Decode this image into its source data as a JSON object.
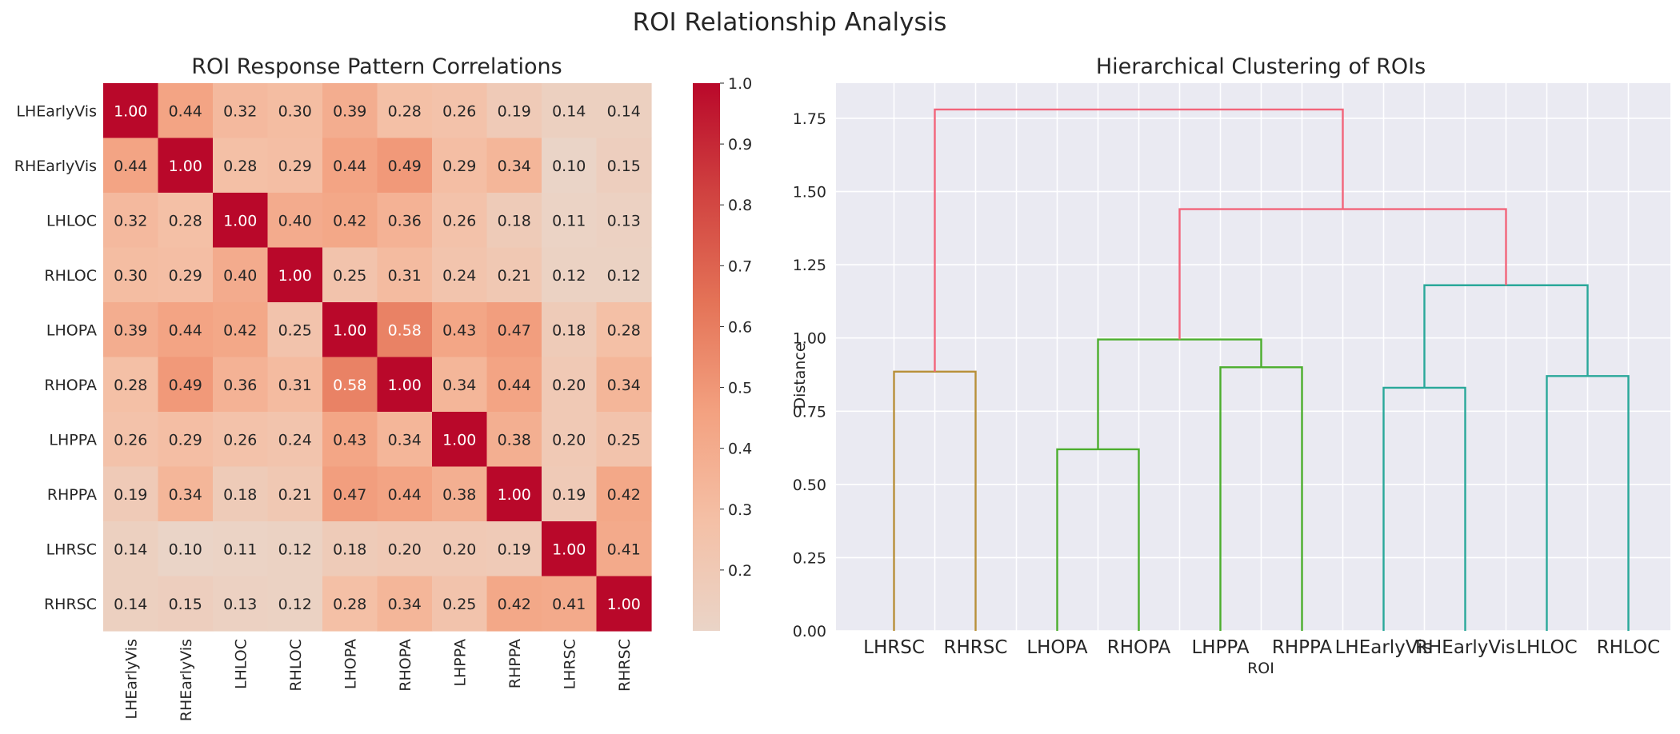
{
  "figure": {
    "title": "ROI Relationship Analysis"
  },
  "chart_data": [
    {
      "type": "heatmap",
      "title": "ROI Response Pattern Correlations",
      "rows": [
        "LHEarlyVis",
        "RHEarlyVis",
        "LHLOC",
        "RHLOC",
        "LHOPA",
        "RHOPA",
        "LHPPA",
        "RHPPA",
        "LHRSC",
        "RHRSC"
      ],
      "cols": [
        "LHEarlyVis",
        "RHEarlyVis",
        "LHLOC",
        "RHLOC",
        "LHOPA",
        "RHOPA",
        "LHPPA",
        "RHPPA",
        "LHRSC",
        "RHRSC"
      ],
      "values": [
        [
          1.0,
          0.44,
          0.32,
          0.3,
          0.39,
          0.28,
          0.26,
          0.19,
          0.14,
          0.14
        ],
        [
          0.44,
          1.0,
          0.28,
          0.29,
          0.44,
          0.49,
          0.29,
          0.34,
          0.1,
          0.15
        ],
        [
          0.32,
          0.28,
          1.0,
          0.4,
          0.42,
          0.36,
          0.26,
          0.18,
          0.11,
          0.13
        ],
        [
          0.3,
          0.29,
          0.4,
          1.0,
          0.25,
          0.31,
          0.24,
          0.21,
          0.12,
          0.12
        ],
        [
          0.39,
          0.44,
          0.42,
          0.25,
          1.0,
          0.58,
          0.43,
          0.47,
          0.18,
          0.28
        ],
        [
          0.28,
          0.49,
          0.36,
          0.31,
          0.58,
          1.0,
          0.34,
          0.44,
          0.2,
          0.34
        ],
        [
          0.26,
          0.29,
          0.26,
          0.24,
          0.43,
          0.34,
          1.0,
          0.38,
          0.2,
          0.25
        ],
        [
          0.19,
          0.34,
          0.18,
          0.21,
          0.47,
          0.44,
          0.38,
          1.0,
          0.19,
          0.42
        ],
        [
          0.14,
          0.1,
          0.11,
          0.12,
          0.18,
          0.2,
          0.2,
          0.19,
          1.0,
          0.41
        ],
        [
          0.14,
          0.15,
          0.13,
          0.12,
          0.28,
          0.34,
          0.25,
          0.42,
          0.41,
          1.0
        ]
      ],
      "colorbar": {
        "range": [
          0.1,
          1.0
        ],
        "ticks": [
          "0.2",
          "0.3",
          "0.4",
          "0.5",
          "0.6",
          "0.7",
          "0.8",
          "0.9",
          "1.0"
        ],
        "colormap": "coolwarm (upper half)"
      },
      "annotations": true
    },
    {
      "type": "dendrogram",
      "title": "Hierarchical Clustering of ROIs",
      "xlabel": "ROI",
      "ylabel": "Distance",
      "leaves": [
        "LHRSC",
        "RHRSC",
        "LHOPA",
        "RHOPA",
        "LHPPA",
        "RHPPA",
        "LHEarlyVis",
        "RHEarlyVis",
        "LHLOC",
        "RHLOC"
      ],
      "ylim": [
        0,
        1.87
      ],
      "yticks": [
        "0.00",
        "0.25",
        "0.50",
        "0.75",
        "1.00",
        "1.25",
        "1.50",
        "1.75"
      ],
      "grid": true,
      "merges": [
        {
          "left": "LHRSC",
          "right": "RHRSC",
          "height": 0.885,
          "color": "#b8903a"
        },
        {
          "left": "LHOPA",
          "right": "RHOPA",
          "height": 0.62,
          "color": "#4cae2e"
        },
        {
          "left": "LHPPA",
          "right": "RHPPA",
          "height": 0.9,
          "color": "#4cae2e"
        },
        {
          "left": "LHOPA+RHOPA",
          "right": "LHPPA+RHPPA",
          "height": 0.995,
          "color": "#4cae2e"
        },
        {
          "left": "LHEarlyVis",
          "right": "RHEarlyVis",
          "height": 0.83,
          "color": "#2aa89a"
        },
        {
          "left": "LHLOC",
          "right": "RHLOC",
          "height": 0.87,
          "color": "#2aa89a"
        },
        {
          "left": "LHEarlyVis+RHEarlyVis",
          "right": "LHLOC+RHLOC",
          "height": 1.18,
          "color": "#2aa89a"
        },
        {
          "left": "OPA/PPA cluster",
          "right": "EarlyVis/LOC cluster",
          "height": 1.44,
          "color": "#f2647a"
        },
        {
          "left": "RSC cluster",
          "right": "rest",
          "height": 1.78,
          "color": "#f2647a"
        }
      ]
    }
  ]
}
